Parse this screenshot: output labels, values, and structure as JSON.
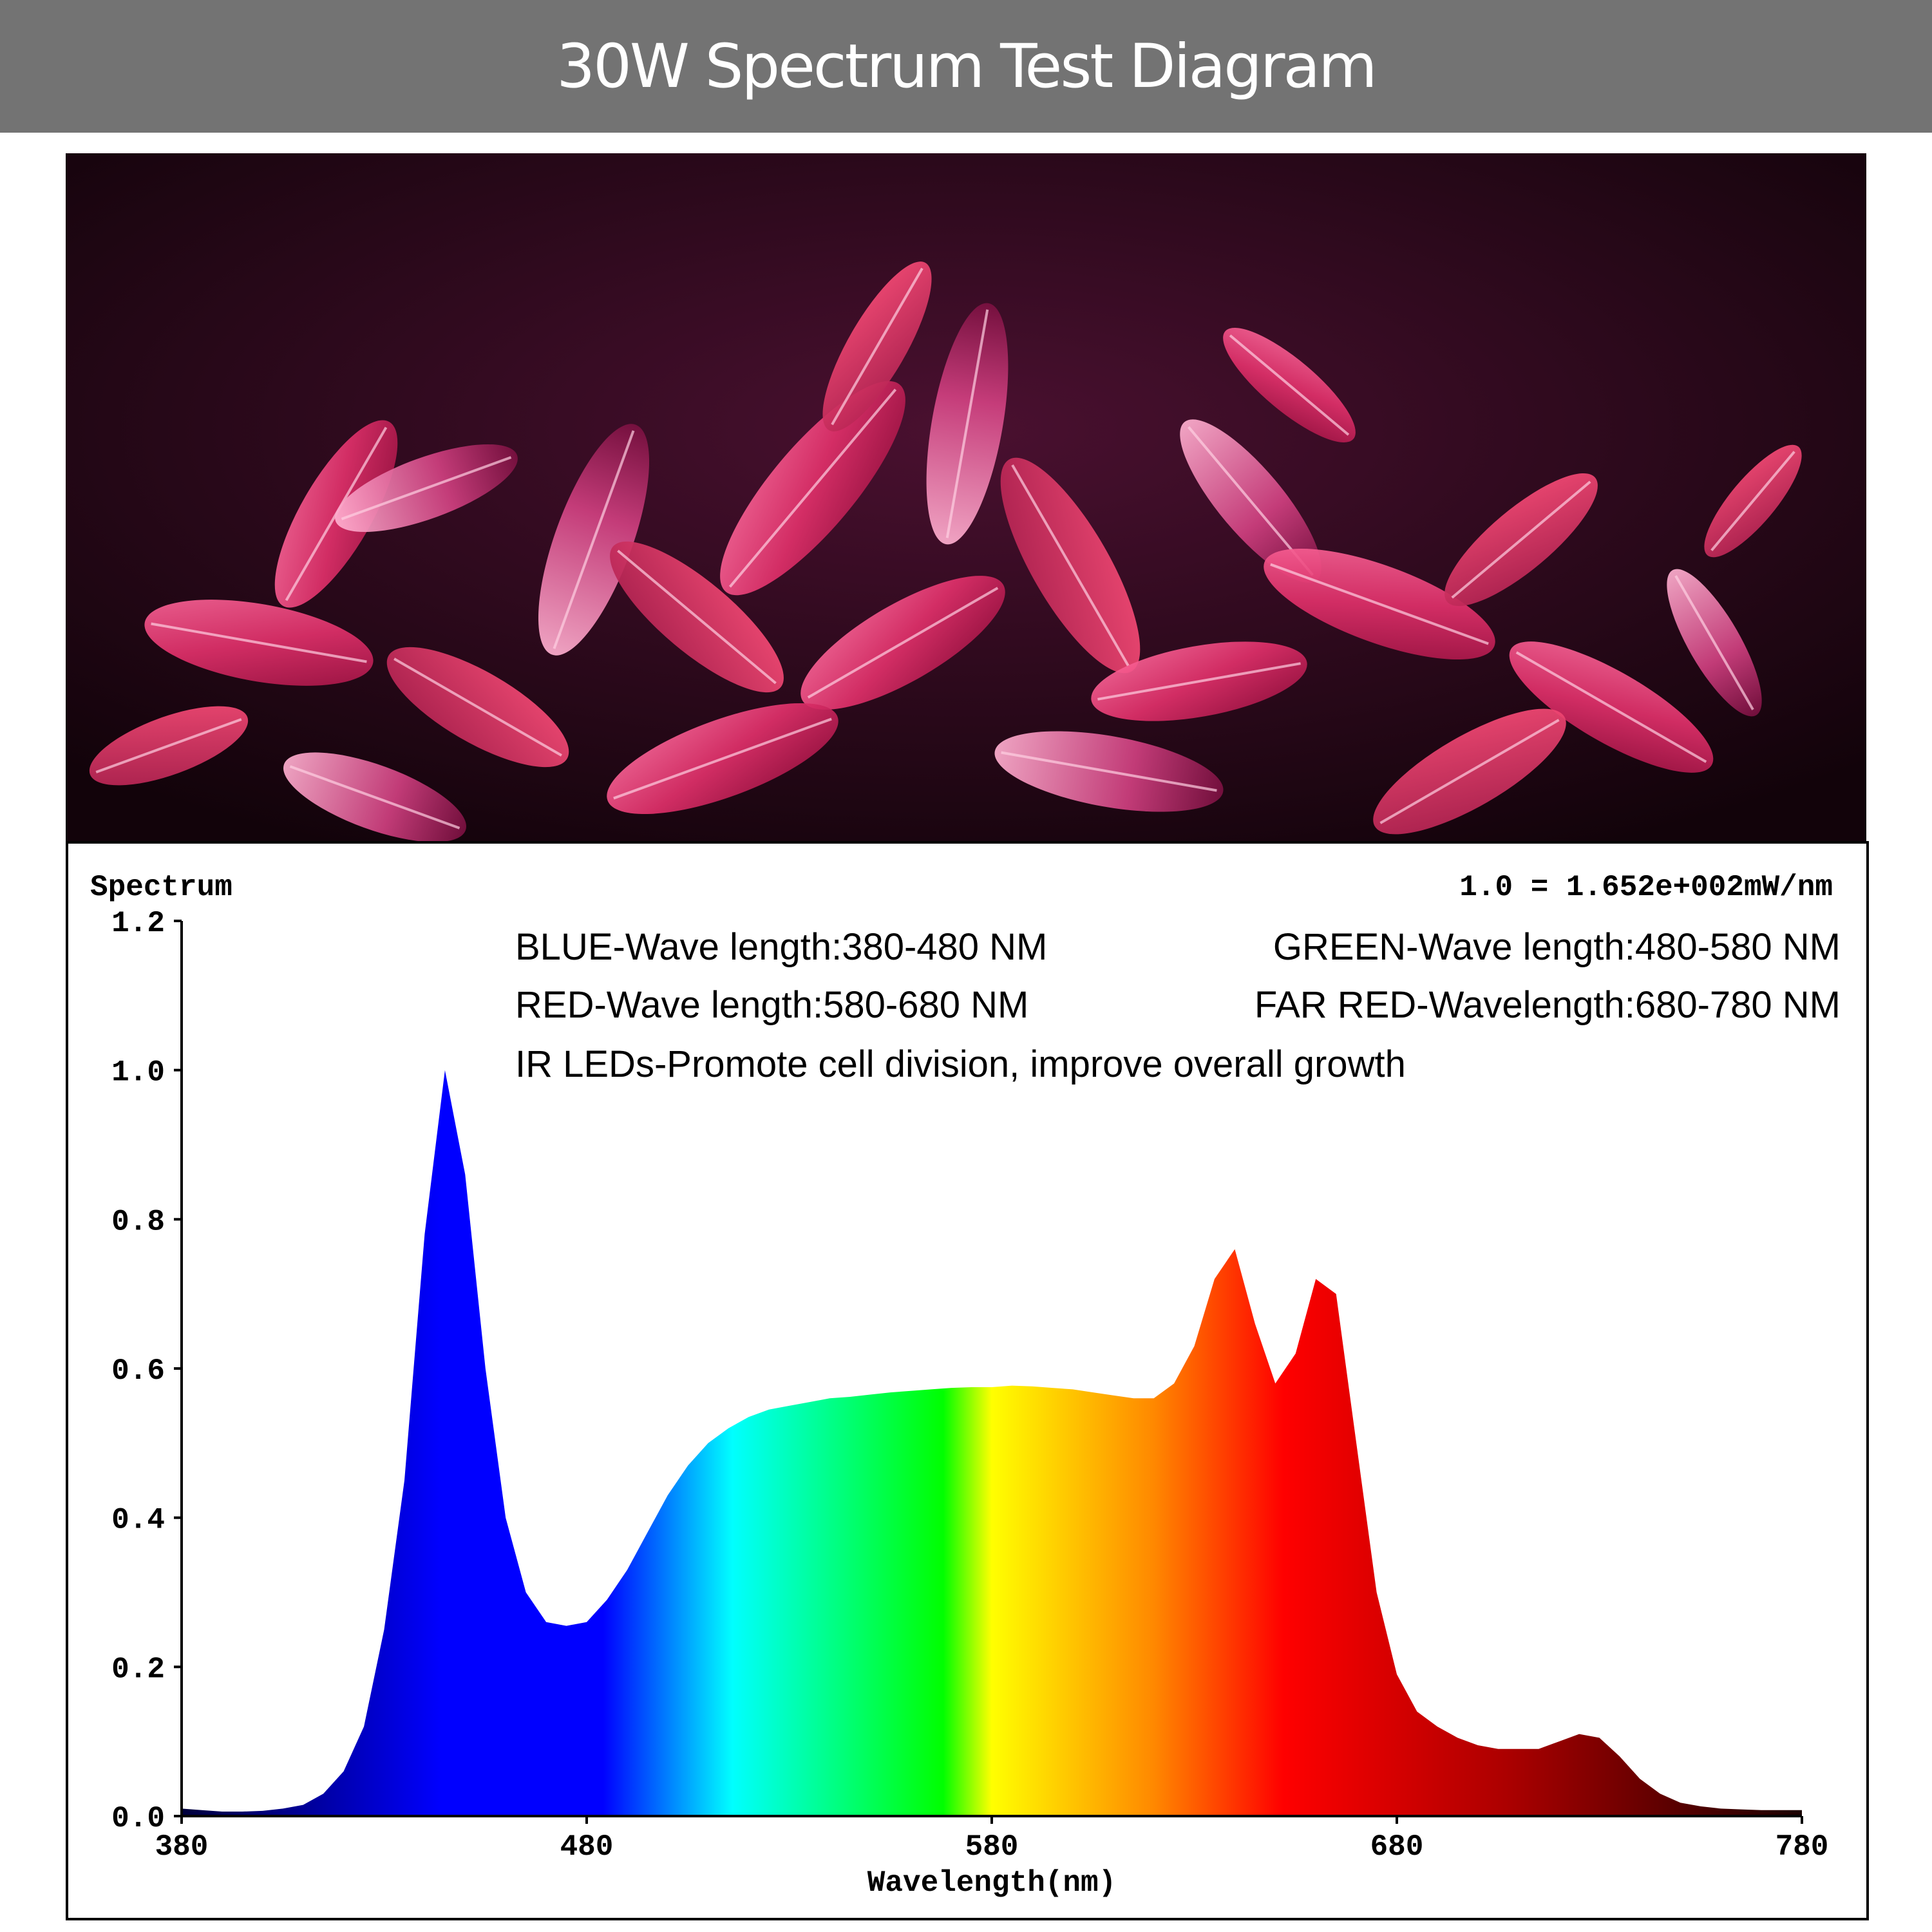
{
  "header": {
    "title": "30W Spectrum Test Diagram"
  },
  "photo": {
    "subject": "plant-leaves-under-purple-grow-light"
  },
  "chart_data": {
    "type": "area",
    "title": "Spectrum",
    "unit_note": "1.0 = 1.652e+002mW/nm",
    "xlabel": "Wavelength(nm)",
    "ylabel": "",
    "xlim": [
      380,
      780
    ],
    "ylim": [
      0,
      1.2
    ],
    "x_ticks": [
      "380",
      "480",
      "580",
      "680",
      "780"
    ],
    "y_ticks": [
      "0.0",
      "0.2",
      "0.4",
      "0.6",
      "0.8",
      "1.0",
      "1.2"
    ],
    "annotations": [
      "BLUE-Wave length:380-480 NM",
      "GREEN-Wave length:480-580 NM",
      "RED-Wave length:580-680 NM",
      "FAR RED-Wavelength:680-780 NM",
      "IR LEDs-Promote cell division, improve overall growth"
    ],
    "series": [
      {
        "x": [
          380,
          385,
          390,
          395,
          400,
          405,
          410,
          415,
          420,
          425,
          430,
          435,
          440,
          445,
          450,
          455,
          460,
          465,
          470,
          475,
          480,
          485,
          490,
          495,
          500,
          505,
          510,
          515,
          520,
          525,
          530,
          535,
          540,
          545,
          550,
          555,
          560,
          565,
          570,
          575,
          580,
          585,
          590,
          595,
          600,
          605,
          610,
          615,
          620,
          625,
          630,
          635,
          640,
          645,
          650,
          655,
          660,
          665,
          670,
          675,
          680,
          685,
          690,
          695,
          700,
          705,
          710,
          715,
          720,
          725,
          730,
          735,
          740,
          745,
          750,
          755,
          760,
          765,
          770,
          775,
          780
        ],
        "values": [
          0.01,
          0.008,
          0.006,
          0.006,
          0.007,
          0.01,
          0.015,
          0.03,
          0.06,
          0.12,
          0.25,
          0.45,
          0.78,
          1.0,
          0.86,
          0.6,
          0.4,
          0.3,
          0.26,
          0.255,
          0.26,
          0.29,
          0.33,
          0.38,
          0.43,
          0.47,
          0.5,
          0.52,
          0.535,
          0.545,
          0.55,
          0.555,
          0.56,
          0.562,
          0.565,
          0.568,
          0.57,
          0.572,
          0.574,
          0.575,
          0.575,
          0.577,
          0.576,
          0.574,
          0.572,
          0.568,
          0.564,
          0.56,
          0.56,
          0.58,
          0.63,
          0.72,
          0.76,
          0.66,
          0.58,
          0.62,
          0.72,
          0.7,
          0.5,
          0.3,
          0.19,
          0.14,
          0.12,
          0.105,
          0.095,
          0.09,
          0.09,
          0.09,
          0.1,
          0.11,
          0.105,
          0.08,
          0.05,
          0.03,
          0.018,
          0.013,
          0.01,
          0.009,
          0.008,
          0.008,
          0.008
        ]
      }
    ],
    "grid": false,
    "legend": "none",
    "colors": {
      "blue_start": "#00003a",
      "blue": "#0000ff",
      "cyan": "#00ffff",
      "green": "#00ff00",
      "yellow": "#ffff00",
      "orange": "#ff8800",
      "red": "#ff0000",
      "dark_red": "#aa0000",
      "far_red_end": "#1a0000"
    }
  }
}
